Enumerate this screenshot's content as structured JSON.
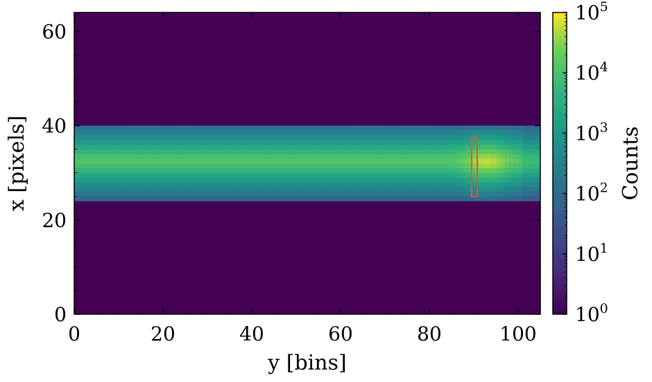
{
  "chart_data": {
    "type": "heatmap",
    "title": "",
    "xlabel": "y [bins]",
    "ylabel": "x [pixels]",
    "xlim": [
      0,
      105
    ],
    "ylim": [
      0,
      64
    ],
    "x_ticks": [
      0,
      20,
      40,
      60,
      80,
      100
    ],
    "y_ticks": [
      0,
      20,
      40,
      60
    ],
    "grid": false,
    "colormap": "viridis",
    "colorbar": {
      "label": "Counts",
      "scale": "log",
      "range": [
        1,
        100000
      ],
      "ticks": [
        {
          "base": "10",
          "exp": "0"
        },
        {
          "base": "10",
          "exp": "1"
        },
        {
          "base": "10",
          "exp": "2"
        },
        {
          "base": "10",
          "exp": "3"
        },
        {
          "base": "10",
          "exp": "4"
        },
        {
          "base": "10",
          "exp": "5"
        }
      ]
    },
    "background_counts": 1,
    "band": {
      "x_range": [
        24,
        40
      ],
      "center": 32,
      "profile_counts": [
        {
          "x": 24,
          "counts": 80
        },
        {
          "x": 25,
          "counts": 150
        },
        {
          "x": 26,
          "counts": 300
        },
        {
          "x": 27,
          "counts": 600
        },
        {
          "x": 28,
          "counts": 1200
        },
        {
          "x": 29,
          "counts": 2500
        },
        {
          "x": 30,
          "counts": 5000
        },
        {
          "x": 31,
          "counts": 9000
        },
        {
          "x": 32,
          "counts": 12000
        },
        {
          "x": 33,
          "counts": 9000
        },
        {
          "x": 34,
          "counts": 5000
        },
        {
          "x": 35,
          "counts": 2500
        },
        {
          "x": 36,
          "counts": 1200
        },
        {
          "x": 37,
          "counts": 600
        },
        {
          "x": 38,
          "counts": 300
        },
        {
          "x": 39,
          "counts": 150
        }
      ],
      "peak_y": 93,
      "peak_counts": 60000
    },
    "annotation": {
      "shape": "rectangle",
      "color": "#e8552b",
      "y_range": [
        89.5,
        90.8
      ],
      "x_range": [
        25,
        37.5
      ]
    }
  }
}
